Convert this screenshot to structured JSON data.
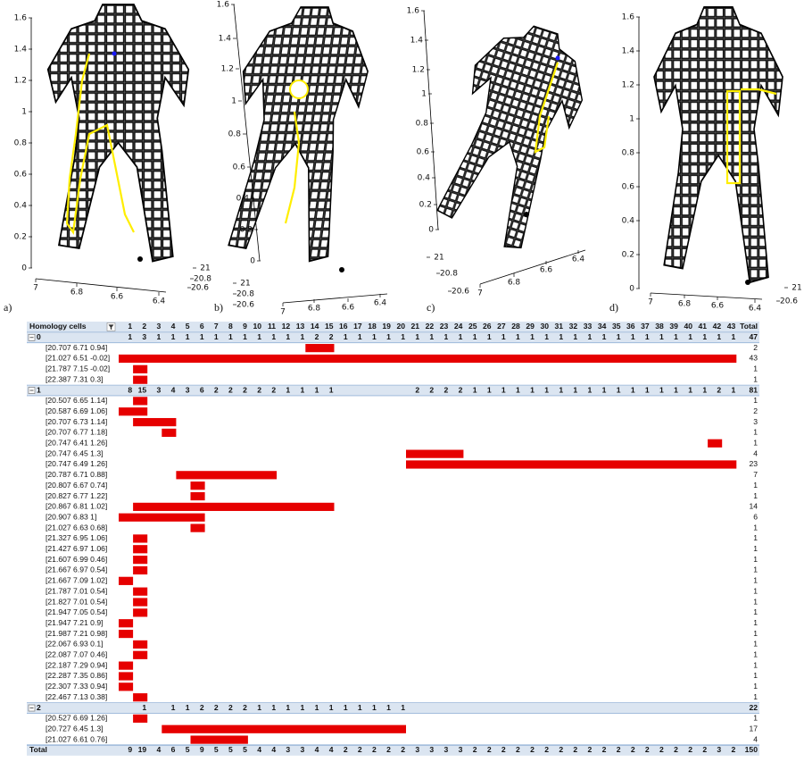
{
  "panels": [
    {
      "label": "a)",
      "yticks": [
        0,
        0.2,
        0.4,
        0.6,
        0.8,
        1,
        1.2,
        1.4,
        1.6
      ],
      "xticks": [
        7,
        6.8,
        6.6,
        6.4
      ],
      "zticks": [
        21,
        20.8,
        20.6
      ]
    },
    {
      "label": "b)",
      "yticks": [
        0,
        0.2,
        0.4,
        0.6,
        0.8,
        1,
        1.2,
        1.4,
        1.6
      ],
      "xticks": [
        7,
        6.8,
        6.6,
        6.4
      ],
      "zticks": [
        21,
        20.8,
        20.6
      ]
    },
    {
      "label": "c)",
      "yticks": [
        0,
        0.2,
        0.4,
        0.6,
        0.8,
        1,
        1.2,
        1.4,
        1.6
      ],
      "xticks": [
        7,
        6.8,
        6.6,
        6.4
      ],
      "zticks": [
        21,
        20.8,
        20.6
      ]
    },
    {
      "label": "d)",
      "yticks": [
        0,
        0.2,
        0.4,
        0.6,
        0.8,
        1,
        1.2,
        1.4,
        1.6
      ],
      "xticks": [
        7,
        6.8,
        6.6,
        6.4
      ],
      "zticks": [
        21,
        20.6
      ]
    }
  ],
  "table": {
    "header": {
      "label": "Homology cells",
      "columns": [
        1,
        2,
        3,
        4,
        5,
        6,
        7,
        8,
        9,
        10,
        11,
        12,
        13,
        14,
        15,
        16,
        17,
        18,
        19,
        20,
        21,
        22,
        23,
        24,
        25,
        26,
        27,
        28,
        29,
        30,
        31,
        32,
        33,
        34,
        35,
        36,
        37,
        38,
        39,
        40,
        41,
        42,
        43
      ],
      "total": "Total"
    },
    "groups": [
      {
        "name": "0",
        "subtotals": [
          1,
          3,
          1,
          1,
          1,
          1,
          1,
          1,
          1,
          1,
          1,
          1,
          1,
          2,
          2,
          1,
          1,
          1,
          1,
          1,
          1,
          1,
          1,
          1,
          1,
          1,
          1,
          1,
          1,
          1,
          1,
          1,
          1,
          1,
          1,
          1,
          1,
          1,
          1,
          1,
          1,
          1,
          1
        ],
        "total": 47,
        "rows": [
          {
            "label": "[20.707 6.71 0.94]",
            "span": [
              14,
              15
            ],
            "total": 2
          },
          {
            "label": "[21.027 6.51 -0.02]",
            "span": [
              1,
              43
            ],
            "total": 43
          },
          {
            "label": "[21.787 7.15 -0.02]",
            "span": [
              2,
              2
            ],
            "total": 1
          },
          {
            "label": "[22.387 7.31 0.3]",
            "span": [
              2,
              2
            ],
            "total": 1
          }
        ]
      },
      {
        "name": "1",
        "subtotals": [
          8,
          15,
          3,
          4,
          3,
          6,
          2,
          2,
          2,
          2,
          2,
          1,
          1,
          1,
          1,
          null,
          null,
          null,
          null,
          null,
          2,
          2,
          2,
          2,
          1,
          1,
          1,
          1,
          1,
          1,
          1,
          1,
          1,
          1,
          1,
          1,
          1,
          1,
          1,
          1,
          1,
          2,
          1
        ],
        "total": 81,
        "rows": [
          {
            "label": "[20.507 6.65 1.14]",
            "span": [
              2,
              2
            ],
            "total": 1
          },
          {
            "label": "[20.587 6.69 1.06]",
            "span": [
              1,
              2
            ],
            "total": 2
          },
          {
            "label": "[20.707 6.73 1.14]",
            "span": [
              2,
              4
            ],
            "total": 3
          },
          {
            "label": "[20.707 6.77 1.18]",
            "span": [
              4,
              4
            ],
            "total": 1
          },
          {
            "label": "[20.747 6.41 1.26]",
            "span": [
              42,
              42
            ],
            "total": 1
          },
          {
            "label": "[20.747 6.45 1.3]",
            "span": [
              21,
              24
            ],
            "total": 4
          },
          {
            "label": "[20.747 6.49 1.26]",
            "span": [
              21,
              43
            ],
            "total": 23
          },
          {
            "label": "[20.787 6.71 0.88]",
            "span": [
              5,
              11
            ],
            "total": 7
          },
          {
            "label": "[20.807 6.67 0.74]",
            "span": [
              6,
              6
            ],
            "total": 1
          },
          {
            "label": "[20.827 6.77 1.22]",
            "span": [
              6,
              6
            ],
            "total": 1
          },
          {
            "label": "[20.867 6.81 1.02]",
            "span": [
              2,
              15
            ],
            "total": 14
          },
          {
            "label": "[20.907 6.83 1]",
            "span": [
              1,
              6
            ],
            "total": 6
          },
          {
            "label": "[21.027 6.63 0.68]",
            "span": [
              6,
              6
            ],
            "total": 1
          },
          {
            "label": "[21.327 6.95 1.06]",
            "span": [
              2,
              2
            ],
            "total": 1
          },
          {
            "label": "[21.427 6.97 1.06]",
            "span": [
              2,
              2
            ],
            "total": 1
          },
          {
            "label": "[21.607 6.99 0.46]",
            "span": [
              2,
              2
            ],
            "total": 1
          },
          {
            "label": "[21.667 6.97 0.54]",
            "span": [
              2,
              2
            ],
            "total": 1
          },
          {
            "label": "[21.667 7.09 1.02]",
            "span": [
              1,
              1
            ],
            "total": 1
          },
          {
            "label": "[21.787 7.01 0.54]",
            "span": [
              2,
              2
            ],
            "total": 1
          },
          {
            "label": "[21.827 7.01 0.54]",
            "span": [
              2,
              2
            ],
            "total": 1
          },
          {
            "label": "[21.947 7.05 0.54]",
            "span": [
              2,
              2
            ],
            "total": 1
          },
          {
            "label": "[21.947 7.21 0.9]",
            "span": [
              1,
              1
            ],
            "total": 1
          },
          {
            "label": "[21.987 7.21 0.98]",
            "span": [
              1,
              1
            ],
            "total": 1
          },
          {
            "label": "[22.067 6.93 0.1]",
            "span": [
              2,
              2
            ],
            "total": 1
          },
          {
            "label": "[22.087 7.07 0.46]",
            "span": [
              2,
              2
            ],
            "total": 1
          },
          {
            "label": "[22.187 7.29 0.94]",
            "span": [
              1,
              1
            ],
            "total": 1
          },
          {
            "label": "[22.287 7.35 0.86]",
            "span": [
              1,
              1
            ],
            "total": 1
          },
          {
            "label": "[22.307 7.33 0.94]",
            "span": [
              1,
              1
            ],
            "total": 1
          },
          {
            "label": "[22.467 7.13 0.38]",
            "span": [
              2,
              2
            ],
            "total": 1
          }
        ]
      },
      {
        "name": "2",
        "subtotals": [
          null,
          1,
          null,
          1,
          1,
          2,
          2,
          2,
          2,
          1,
          1,
          1,
          1,
          1,
          1,
          1,
          1,
          1,
          1,
          1,
          null,
          null,
          null,
          null,
          null,
          null,
          null,
          null,
          null,
          null,
          null,
          null,
          null,
          null,
          null,
          null,
          null,
          null,
          null,
          null,
          null,
          null,
          null
        ],
        "total": 22,
        "rows": [
          {
            "label": "[20.527 6.69 1.26]",
            "span": [
              2,
              2
            ],
            "total": 1
          },
          {
            "label": "[20.727 6.45 1.3]",
            "span": [
              4,
              20
            ],
            "total": 17
          },
          {
            "label": "[21.027 6.61 0.76]",
            "span": [
              6,
              9
            ],
            "total": 4
          }
        ]
      }
    ],
    "grand_total": {
      "label": "Total",
      "values": [
        9,
        19,
        4,
        6,
        5,
        9,
        5,
        5,
        5,
        4,
        4,
        3,
        3,
        4,
        4,
        2,
        2,
        2,
        2,
        2,
        3,
        3,
        3,
        3,
        2,
        2,
        2,
        2,
        2,
        2,
        2,
        2,
        2,
        2,
        2,
        2,
        2,
        2,
        2,
        2,
        2,
        3,
        2
      ],
      "total": 150
    }
  }
}
